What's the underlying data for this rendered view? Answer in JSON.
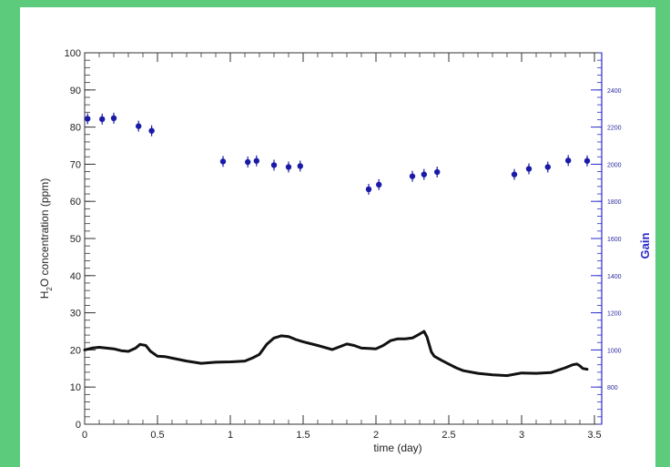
{
  "chart_data": {
    "type": "scatter",
    "xlabel": "time (day)",
    "ylabel_parts": {
      "pre": "H",
      "sub": "2",
      "post": "O concentration  (ppm)"
    },
    "y2label": "Gain",
    "xlim": [
      0,
      3.55
    ],
    "ylim": [
      0,
      100
    ],
    "y2lim": [
      600,
      2600
    ],
    "xticks": [
      0,
      0.5,
      1,
      1.5,
      2,
      2.5,
      3,
      3.5
    ],
    "xtick_labels": [
      "0",
      "0.5",
      "1",
      "1.5",
      "2",
      "2.5",
      "3",
      "3.5"
    ],
    "yticks": [
      0,
      10,
      20,
      30,
      40,
      50,
      60,
      70,
      80,
      90,
      100
    ],
    "ytick_labels": [
      "0",
      "10",
      "20",
      "30",
      "40",
      "50",
      "60",
      "70",
      "80",
      "90",
      "100"
    ],
    "y2ticks": [
      800,
      1000,
      1200,
      1400,
      1600,
      1800,
      2000,
      2200,
      2400
    ],
    "y2tick_labels": [
      "800",
      "1000",
      "1200",
      "1400",
      "1600",
      "1800",
      "2000",
      "2200",
      "2400"
    ],
    "colors": {
      "h2o": "#111111",
      "gain": "#1a1aa8",
      "gain_axis": "#2b2bcf"
    },
    "series": [
      {
        "key": "h2o",
        "axis": "left",
        "style": "line",
        "x": [
          0,
          0.05,
          0.1,
          0.15,
          0.2,
          0.25,
          0.3,
          0.35,
          0.38,
          0.42,
          0.45,
          0.5,
          0.55,
          0.6,
          0.7,
          0.8,
          0.9,
          1.0,
          1.1,
          1.15,
          1.2,
          1.25,
          1.3,
          1.35,
          1.4,
          1.45,
          1.5,
          1.6,
          1.7,
          1.8,
          1.85,
          1.9,
          1.95,
          2.0,
          2.05,
          2.1,
          2.15,
          2.2,
          2.25,
          2.3,
          2.33,
          2.35,
          2.38,
          2.4,
          2.45,
          2.5,
          2.55,
          2.6,
          2.7,
          2.8,
          2.9,
          3.0,
          3.1,
          3.2,
          3.3,
          3.35,
          3.38,
          3.4,
          3.42,
          3.45
        ],
        "y": [
          20,
          20.5,
          20.7,
          20.5,
          20.3,
          19.8,
          19.6,
          20.5,
          21.5,
          21.2,
          19.7,
          18.3,
          18.2,
          17.8,
          17,
          16.4,
          16.7,
          16.8,
          17,
          17.8,
          18.8,
          21.5,
          23.2,
          23.8,
          23.6,
          22.8,
          22.2,
          21.2,
          20.1,
          21.6,
          21.2,
          20.5,
          20.4,
          20.3,
          21.2,
          22.5,
          23,
          23,
          23.2,
          24.3,
          25,
          23.5,
          19.5,
          18.3,
          17.2,
          16.2,
          15.2,
          14.4,
          13.7,
          13.3,
          13.1,
          13.8,
          13.7,
          13.9,
          15.2,
          16,
          16.2,
          15.7,
          15,
          14.8
        ]
      },
      {
        "key": "gain",
        "axis": "right",
        "style": "points",
        "x": [
          0.02,
          0.12,
          0.2,
          0.37,
          0.46,
          0.95,
          1.12,
          1.18,
          1.3,
          1.4,
          1.48,
          1.95,
          2.02,
          2.25,
          2.33,
          2.42,
          2.95,
          3.05,
          3.18,
          3.32,
          3.45
        ],
        "y": [
          2245,
          2243,
          2248,
          2205,
          2180,
          2015,
          2012,
          2018,
          1995,
          1985,
          1990,
          1865,
          1890,
          1935,
          1945,
          1958,
          1945,
          1975,
          1985,
          2020,
          2018
        ]
      }
    ]
  }
}
